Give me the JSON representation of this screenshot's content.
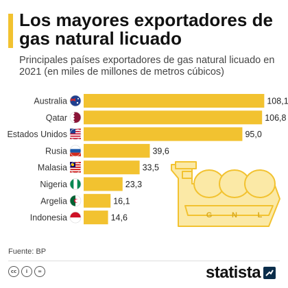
{
  "header": {
    "title": "Los mayores exportadores de gas natural licuado",
    "subtitle": "Principales países exportadores de gas natural licuado en 2021 (en miles de millones de metros cúbicos)"
  },
  "chart_data": {
    "type": "bar",
    "orientation": "horizontal",
    "categories": [
      "Australia",
      "Qatar",
      "Estados Unidos",
      "Rusia",
      "Malasia",
      "Nigeria",
      "Argelia",
      "Indonesia"
    ],
    "values": [
      108.1,
      106.8,
      95.0,
      39.6,
      33.5,
      23.3,
      16.1,
      14.6
    ],
    "value_labels": [
      "108,1",
      "106,8",
      "95,0",
      "39,6",
      "33,5",
      "23,3",
      "16,1",
      "14,6"
    ],
    "flags": [
      "flag-australia",
      "flag-qatar",
      "flag-usa",
      "flag-russia",
      "flag-malaysia",
      "flag-nigeria",
      "flag-algeria",
      "flag-indonesia"
    ],
    "bar_color": "#f2c230",
    "xlim": [
      0,
      110
    ],
    "grid": false,
    "illustration": {
      "icon": "lng-tanker-ship-icon",
      "tank_labels": [
        "G",
        "N",
        "L"
      ]
    }
  },
  "footer": {
    "source": "Fuente: BP",
    "license_icons": [
      "cc-icon",
      "by-icon",
      "equals-icon"
    ],
    "brand": "statista"
  },
  "colors": {
    "accent": "#f2c230",
    "text": "#333333",
    "title": "#111111"
  }
}
